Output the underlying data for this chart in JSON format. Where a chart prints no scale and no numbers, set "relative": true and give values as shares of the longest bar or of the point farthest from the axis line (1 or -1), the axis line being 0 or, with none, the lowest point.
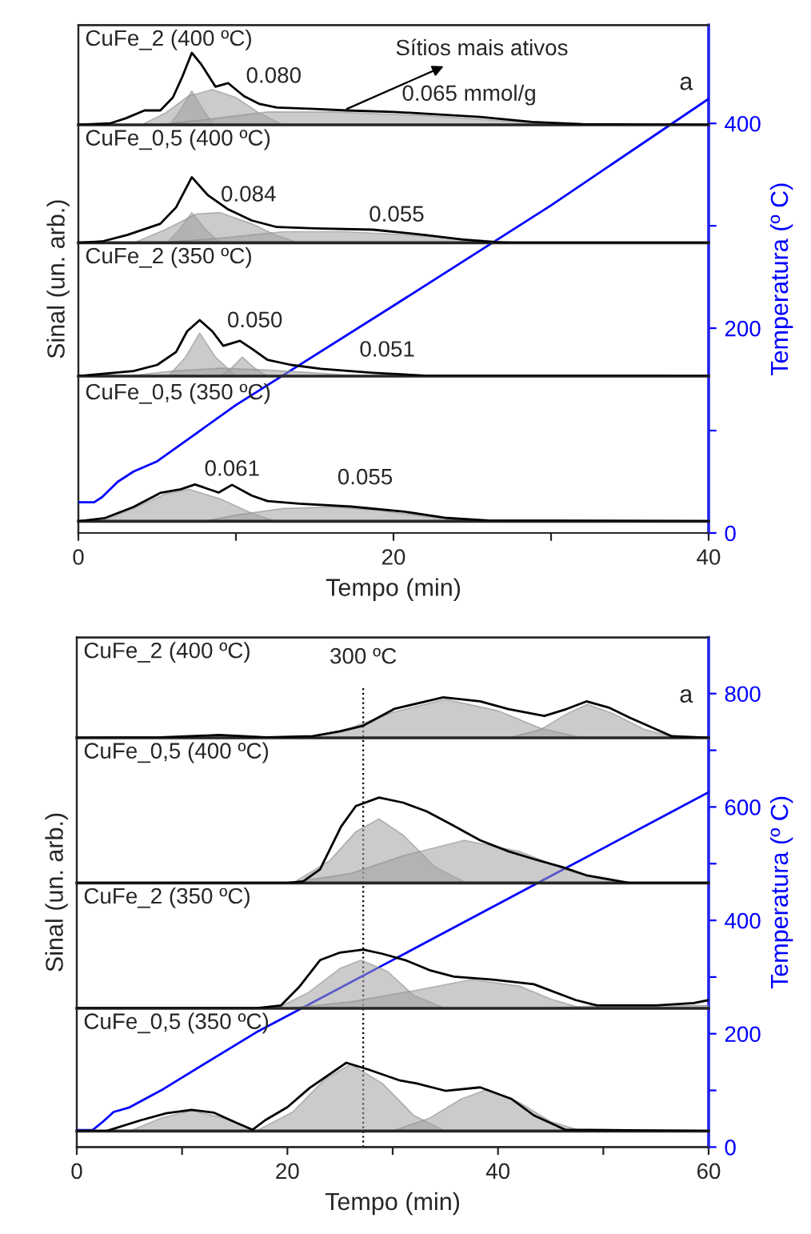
{
  "chart_data": [
    {
      "type": "line",
      "xlabel": "Tempo (min)",
      "ylabel": "Sinal (un. arb.)",
      "y2label": "Temperatura (º C)",
      "xlim": [
        0,
        40
      ],
      "xticks": [
        0,
        {
          "value": 10,
          "label": null
        },
        20,
        {
          "value": 30,
          "label": null
        },
        40
      ],
      "y2lim": [
        0,
        496
      ],
      "y2ticks": [
        0,
        {
          "value": 100,
          "label": null
        },
        200,
        {
          "value": 300,
          "label": null
        },
        400
      ],
      "annotations": [
        "a",
        "Sítios mais ativos"
      ],
      "series": [
        {
          "color": "#0000ff",
          "axis": "y2",
          "x": [
            0,
            1,
            1.5,
            2.5,
            3.5,
            5,
            7,
            10,
            20,
            30,
            40
          ],
          "values": [
            30,
            30,
            35,
            50,
            60,
            70,
            92,
            125,
            222,
            320,
            424
          ]
        }
      ]
    },
    {
      "type": "line",
      "relative": true,
      "title": "CuFe_2 (400 ºC)",
      "xlim": [
        0,
        40
      ],
      "tick_labels": false,
      "annotations": [
        "0.080",
        "0.065 mmol/g"
      ],
      "series": [
        {
          "type": "area",
          "color": "#a0a0a0",
          "x": [
            5.8,
            6.4,
            7.2,
            8,
            8.6
          ],
          "values": [
            0,
            0.18,
            0.47,
            0.18,
            0
          ]
        },
        {
          "type": "area",
          "color": "#a0a0a0",
          "x": [
            4,
            5.5,
            7,
            8.5,
            10,
            11.5,
            13
          ],
          "values": [
            0,
            0.16,
            0.4,
            0.49,
            0.38,
            0.16,
            0
          ]
        },
        {
          "type": "area",
          "color": "#a0a0a0",
          "x": [
            5,
            8,
            12,
            16,
            22,
            28,
            32
          ],
          "values": [
            0,
            0.07,
            0.18,
            0.18,
            0.13,
            0.04,
            0
          ]
        },
        {
          "color": "#000000",
          "x": [
            0,
            2,
            3,
            4.2,
            5.2,
            6,
            6.6,
            7.2,
            7.8,
            8.7,
            9.5,
            10.5,
            11.5,
            12.6,
            15,
            17,
            20,
            25.5,
            28.8,
            32,
            40
          ],
          "values": [
            0,
            0.02,
            0.09,
            0.2,
            0.2,
            0.38,
            0.67,
            1,
            0.84,
            0.53,
            0.58,
            0.4,
            0.29,
            0.24,
            0.22,
            0.2,
            0.18,
            0.11,
            0.04,
            0.01,
            0
          ]
        }
      ]
    },
    {
      "type": "line",
      "relative": true,
      "title": "CuFe_0,5 (400 ºC)",
      "xlim": [
        0,
        40
      ],
      "tick_labels": false,
      "annotations": [
        "0.084",
        "0.055"
      ],
      "series": [
        {
          "type": "area",
          "color": "#a0a0a0",
          "x": [
            5.6,
            6.4,
            7.2,
            8.1,
            9
          ],
          "values": [
            0,
            0.2,
            0.46,
            0.2,
            0
          ]
        },
        {
          "type": "area",
          "color": "#a0a0a0",
          "x": [
            3.5,
            5.5,
            7.5,
            9,
            11,
            12.5,
            14
          ],
          "values": [
            0,
            0.2,
            0.44,
            0.46,
            0.29,
            0.12,
            0
          ]
        },
        {
          "type": "area",
          "color": "#a0a0a0",
          "x": [
            5,
            9,
            13,
            17,
            21,
            25,
            28
          ],
          "values": [
            0,
            0.07,
            0.17,
            0.17,
            0.12,
            0.05,
            0
          ]
        },
        {
          "color": "#000000",
          "x": [
            0,
            1.5,
            3.1,
            5.2,
            6.2,
            7.2,
            8.2,
            9.5,
            11,
            12.6,
            15,
            18.7,
            22,
            24.4,
            27,
            40
          ],
          "values": [
            0,
            0.02,
            0.12,
            0.29,
            0.54,
            1,
            0.73,
            0.51,
            0.34,
            0.24,
            0.22,
            0.2,
            0.12,
            0.05,
            0,
            0
          ]
        }
      ]
    },
    {
      "type": "line",
      "relative": true,
      "title": "CuFe_2 (350 ºC)",
      "xlim": [
        0,
        40
      ],
      "tick_labels": false,
      "annotations": [
        "0.050",
        "0.051"
      ],
      "series": [
        {
          "type": "area",
          "color": "#a0a0a0",
          "x": [
            5.7,
            6.8,
            7.7,
            8.7,
            10
          ],
          "values": [
            0,
            0.34,
            0.77,
            0.34,
            0
          ]
        },
        {
          "type": "area",
          "color": "#a0a0a0",
          "x": [
            9,
            9.7,
            10.4,
            11.2,
            12
          ],
          "values": [
            0,
            0.14,
            0.34,
            0.14,
            0
          ]
        },
        {
          "type": "area",
          "color": "#a0a0a0",
          "x": [
            3,
            6,
            9,
            12,
            15,
            18
          ],
          "values": [
            0,
            0.09,
            0.14,
            0.11,
            0.06,
            0
          ]
        },
        {
          "color": "#000000",
          "x": [
            0,
            3.5,
            5,
            6.2,
            6.9,
            7.7,
            8.5,
            9.2,
            10.25,
            11,
            12,
            13.5,
            15.4,
            18.7,
            22,
            40
          ],
          "values": [
            0,
            0.09,
            0.2,
            0.43,
            0.8,
            1,
            0.8,
            0.54,
            0.63,
            0.49,
            0.29,
            0.2,
            0.13,
            0.06,
            0.01,
            0
          ]
        }
      ]
    },
    {
      "type": "line",
      "relative": true,
      "title": "CuFe_0,5 (350 ºC)",
      "xlim": [
        0,
        40
      ],
      "tick_labels": false,
      "annotations": [
        "0.061",
        "0.055"
      ],
      "series": [
        {
          "type": "area",
          "color": "#a0a0a0",
          "x": [
            1.5,
            3.5,
            5.5,
            7,
            9,
            11,
            12.5
          ],
          "values": [
            0,
            0.35,
            0.74,
            0.87,
            0.61,
            0.22,
            0
          ]
        },
        {
          "type": "area",
          "color": "#a0a0a0",
          "x": [
            8,
            10,
            13,
            16,
            19,
            22,
            25
          ],
          "values": [
            0,
            0.17,
            0.35,
            0.39,
            0.3,
            0.13,
            0
          ]
        },
        {
          "color": "#000000",
          "x": [
            0,
            1.7,
            3.5,
            5.2,
            6.5,
            7.4,
            8.9,
            9.75,
            11,
            12,
            14,
            17.3,
            20.7,
            23.4,
            26,
            40
          ],
          "values": [
            0,
            0.09,
            0.39,
            0.77,
            0.87,
            1,
            0.78,
            0.99,
            0.7,
            0.55,
            0.48,
            0.4,
            0.26,
            0.09,
            0.02,
            0
          ]
        }
      ]
    },
    {
      "type": "line",
      "xlabel": "Tempo (min)",
      "ylabel": "Sinal (un. arb.)",
      "y2label": "Temperatura (º C)",
      "xlim": [
        0,
        60
      ],
      "xticks": [
        0,
        {
          "value": 10,
          "label": null
        },
        20,
        {
          "value": 30,
          "label": null
        },
        40,
        {
          "value": 50,
          "label": null
        },
        60
      ],
      "y2lim": [
        0,
        899
      ],
      "y2ticks": [
        0,
        {
          "value": 100,
          "label": null
        },
        200,
        {
          "value": 300,
          "label": null
        },
        400,
        {
          "value": 500,
          "label": null
        },
        600,
        {
          "value": 700,
          "label": null
        },
        800
      ],
      "annotations": [
        "a"
      ],
      "ref_lines": [
        {
          "axis": "x",
          "value": 27.2,
          "label": "300 ºC",
          "line_style": "dotted",
          "color": "#000000"
        }
      ],
      "series": [
        {
          "color": "#0000ff",
          "axis": "y2",
          "x": [
            0,
            1.5,
            2.5,
            3.5,
            5,
            8,
            17,
            30,
            45,
            60
          ],
          "values": [
            30,
            30,
            45,
            62,
            70,
            100,
            202,
            330,
            478,
            626
          ]
        }
      ]
    },
    {
      "type": "line",
      "relative": true,
      "title": "CuFe_2 (400 ºC)",
      "xlim": [
        0,
        60
      ],
      "tick_labels": false,
      "series": [
        {
          "type": "area",
          "color": "#a0a0a0",
          "x": [
            9,
            13.5,
            18
          ],
          "values": [
            0,
            0.06,
            0
          ]
        },
        {
          "type": "area",
          "color": "#a0a0a0",
          "x": [
            22,
            26,
            30,
            35,
            40,
            44,
            48
          ],
          "values": [
            0,
            0.24,
            0.63,
            0.95,
            0.67,
            0.24,
            0
          ]
        },
        {
          "type": "area",
          "color": "#a0a0a0",
          "x": [
            41,
            44,
            46.5,
            48.5,
            51,
            54,
            57
          ],
          "values": [
            0,
            0.2,
            0.59,
            0.83,
            0.59,
            0.2,
            0
          ]
        },
        {
          "color": "#000000",
          "x": [
            0,
            8,
            13.5,
            18,
            22.4,
            25,
            27.2,
            30.2,
            34.8,
            38.3,
            41,
            44.4,
            46.5,
            48.4,
            50.5,
            52.5,
            56.5,
            60
          ],
          "values": [
            0,
            0.01,
            0.07,
            0.01,
            0.04,
            0.16,
            0.3,
            0.72,
            1,
            0.9,
            0.71,
            0.54,
            0.71,
            0.9,
            0.75,
            0.5,
            0.04,
            0
          ]
        }
      ]
    },
    {
      "type": "line",
      "relative": true,
      "title": "CuFe_0,5 (400 ºC)",
      "xlim": [
        0,
        60
      ],
      "tick_labels": false,
      "series": [
        {
          "type": "area",
          "color": "#a0a0a0",
          "x": [
            20.5,
            24,
            26.5,
            28.7,
            31,
            34,
            37
          ],
          "values": [
            0,
            0.26,
            0.6,
            0.75,
            0.56,
            0.19,
            0
          ]
        },
        {
          "type": "area",
          "color": "#a0a0a0",
          "x": [
            20,
            26,
            31,
            36.8,
            42,
            47,
            52
          ],
          "values": [
            0,
            0.11,
            0.32,
            0.5,
            0.37,
            0.13,
            0
          ]
        },
        {
          "color": "#000000",
          "x": [
            0,
            20,
            21.5,
            23.1,
            25.1,
            26.5,
            28.7,
            31,
            33.2,
            35.5,
            38.3,
            41,
            43.4,
            46,
            48.4,
            52.5,
            60
          ],
          "values": [
            0,
            0,
            0.02,
            0.16,
            0.66,
            0.9,
            1,
            0.94,
            0.84,
            0.69,
            0.5,
            0.37,
            0.28,
            0.19,
            0.09,
            0,
            0
          ]
        }
      ]
    },
    {
      "type": "line",
      "relative": true,
      "title": "CuFe_2 (350 ºC)",
      "xlim": [
        0,
        60
      ],
      "tick_labels": false,
      "series": [
        {
          "type": "area",
          "color": "#a0a0a0",
          "x": [
            19,
            22,
            25,
            27,
            29.5,
            32,
            35
          ],
          "values": [
            0,
            0.27,
            0.68,
            0.82,
            0.63,
            0.22,
            0
          ]
        },
        {
          "type": "area",
          "color": "#a0a0a0",
          "x": [
            20,
            26,
            32,
            37.5,
            42,
            45,
            48
          ],
          "values": [
            0,
            0.11,
            0.3,
            0.49,
            0.38,
            0.16,
            0
          ]
        },
        {
          "type": "area",
          "color": "#a0a0a0",
          "x": [
            44,
            50,
            55,
            60
          ],
          "values": [
            0,
            0.05,
            0.05,
            0.05
          ]
        },
        {
          "color": "#000000",
          "x": [
            0,
            17,
            19.4,
            21.1,
            23.1,
            25,
            27.2,
            29,
            31.2,
            33.5,
            35.8,
            39.5,
            43.4,
            47.4,
            49.4,
            55,
            58.6,
            60
          ],
          "values": [
            0,
            0,
            0.05,
            0.36,
            0.82,
            0.95,
            1,
            0.93,
            0.82,
            0.65,
            0.54,
            0.49,
            0.41,
            0.14,
            0.05,
            0.05,
            0.09,
            0.14
          ]
        }
      ]
    },
    {
      "type": "line",
      "relative": true,
      "title": "CuFe_0,5 (350 ºC)",
      "xlim": [
        0,
        60
      ],
      "tick_labels": false,
      "series": [
        {
          "type": "area",
          "color": "#a0a0a0",
          "x": [
            5,
            8,
            10.9,
            14,
            17
          ],
          "values": [
            0,
            0.19,
            0.3,
            0.19,
            0
          ]
        },
        {
          "type": "area",
          "color": "#a0a0a0",
          "x": [
            17,
            20.5,
            23.5,
            26,
            29,
            32,
            35
          ],
          "values": [
            0,
            0.28,
            0.75,
            0.98,
            0.7,
            0.23,
            0
          ]
        },
        {
          "type": "area",
          "color": "#a0a0a0",
          "x": [
            30,
            33.5,
            36.5,
            39,
            42,
            45,
            48
          ],
          "values": [
            0,
            0.19,
            0.47,
            0.61,
            0.42,
            0.14,
            0
          ]
        },
        {
          "color": "#000000",
          "x": [
            0,
            2.8,
            6.1,
            8.5,
            10.9,
            13,
            15.2,
            16.7,
            17.9,
            20,
            22.1,
            25.6,
            27.7,
            30.7,
            32.2,
            35,
            38.3,
            41.3,
            43.4,
            46.4,
            60
          ],
          "values": [
            0,
            0,
            0.16,
            0.26,
            0.31,
            0.27,
            0.12,
            0.02,
            0.16,
            0.35,
            0.63,
            1,
            0.9,
            0.74,
            0.7,
            0.59,
            0.64,
            0.47,
            0.23,
            0.02,
            0
          ]
        }
      ]
    }
  ]
}
